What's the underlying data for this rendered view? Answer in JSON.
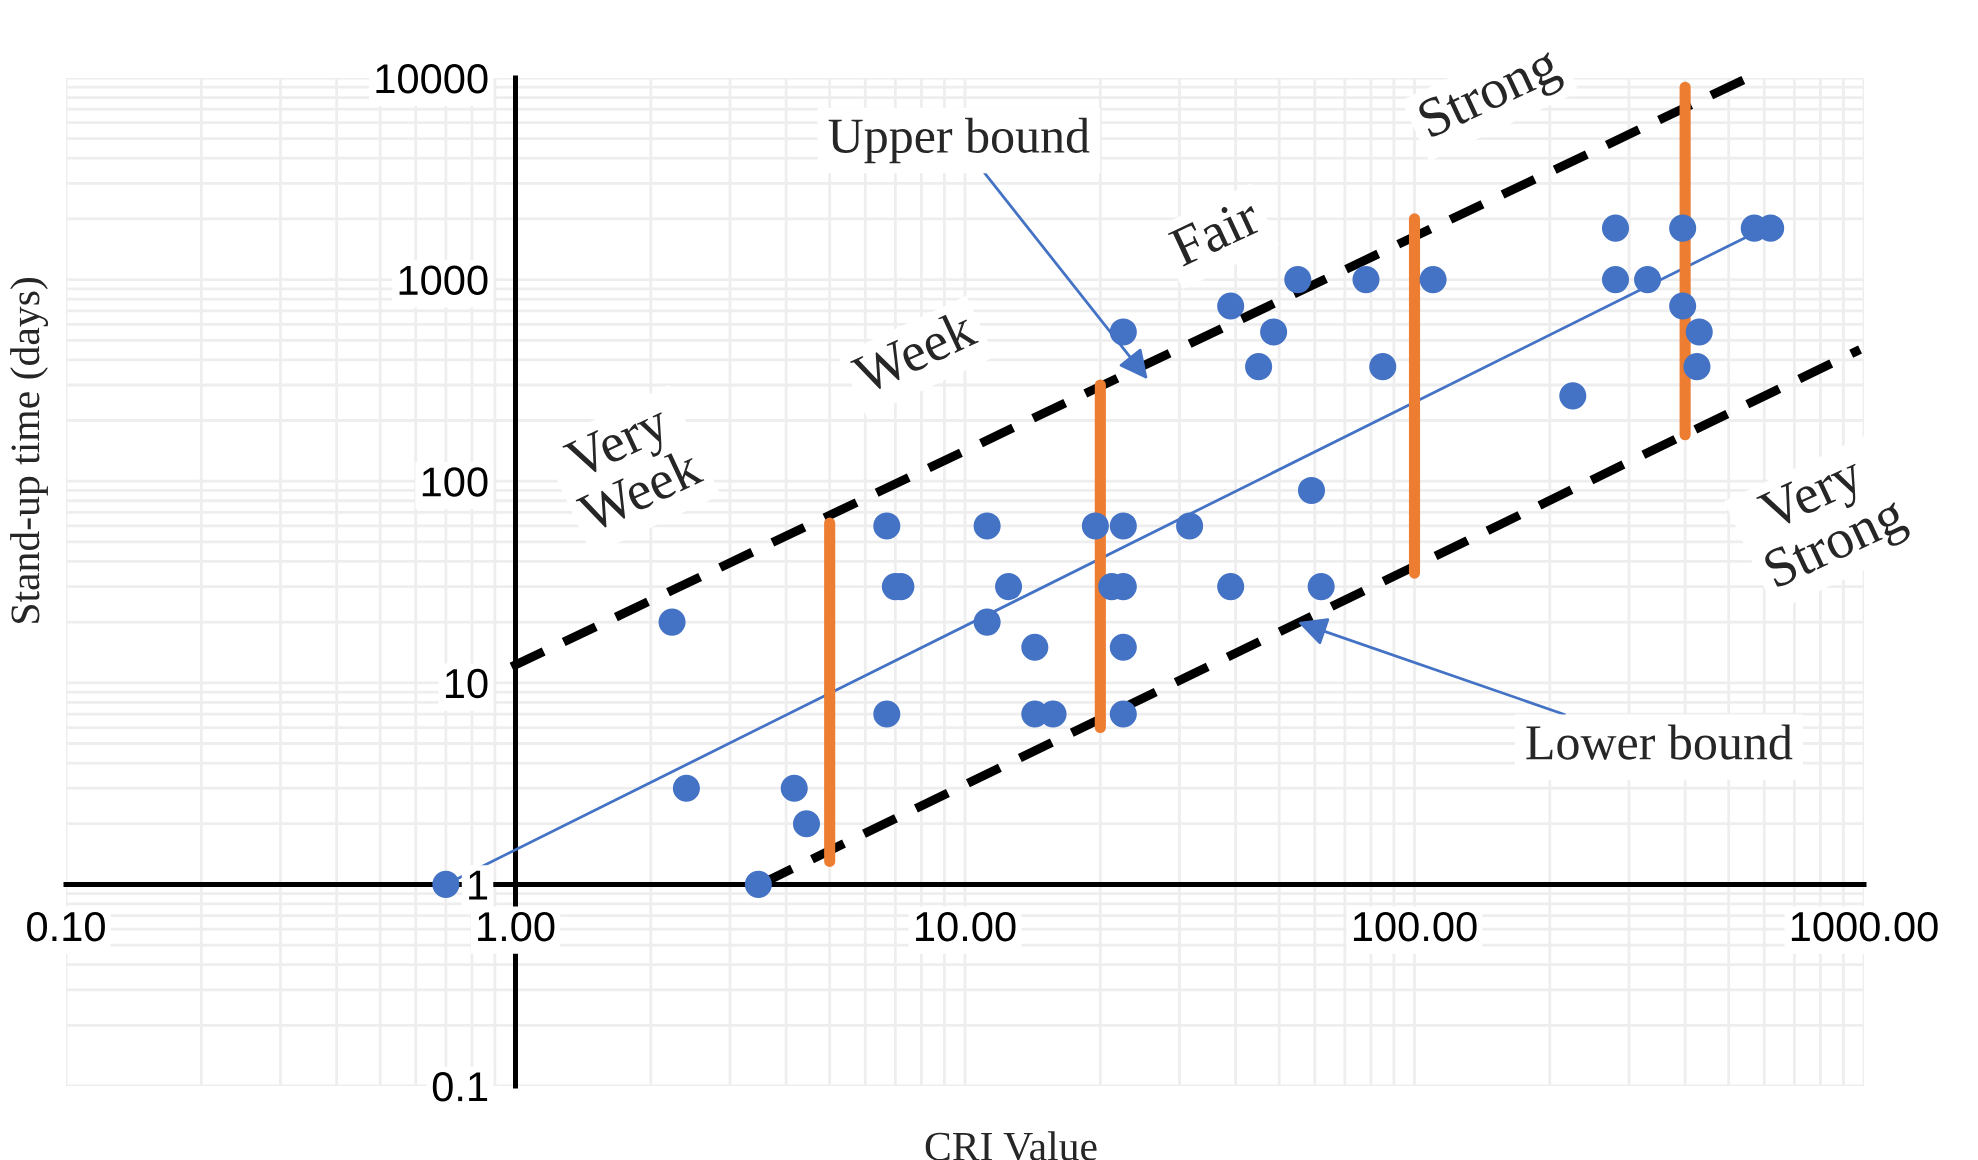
{
  "chart_data": {
    "type": "scatter",
    "xlabel": "CRI Value",
    "ylabel": "Stand-up time (days)",
    "log": "xy",
    "grid": true,
    "xlim": [
      0.1,
      1000
    ],
    "ylim": [
      0.1,
      10000
    ],
    "xticks": [
      {
        "value": 0.1,
        "label": "0.10"
      },
      {
        "value": 1,
        "label": "1.00"
      },
      {
        "value": 10,
        "label": "10.00"
      },
      {
        "value": 100,
        "label": "100.00"
      },
      {
        "value": 1000,
        "label": "1000.00"
      }
    ],
    "yticks": [
      0.1,
      1,
      10,
      100,
      1000,
      10000
    ],
    "series": [
      {
        "marker": "circle",
        "color": "#4472c4",
        "x": [
          0.7,
          2.23,
          2.4,
          3.47,
          4.17,
          4.44,
          6.7,
          6.7,
          7.0,
          7.2,
          11.2,
          11.2,
          12.5,
          14.3,
          14.3,
          15.7,
          19.5,
          21.2,
          22.5,
          22.5,
          22.5,
          22.5,
          22.5,
          31.6,
          39,
          39,
          45,
          48.6,
          55,
          59,
          62,
          78,
          85,
          110,
          225,
          280,
          280,
          330,
          395,
          395,
          430,
          425,
          570,
          620
        ],
        "values": [
          1,
          20,
          3,
          1,
          3,
          2,
          60,
          7,
          30,
          30,
          60,
          20,
          30,
          15,
          7,
          7,
          60,
          30,
          60,
          30,
          15,
          7,
          550,
          60,
          30,
          740,
          370,
          550,
          1000,
          90,
          30,
          1000,
          370,
          1000,
          265,
          1000,
          1800,
          1000,
          1800,
          740,
          550,
          370,
          1800,
          1800
        ]
      },
      {
        "type": "line",
        "color": "#4472c4",
        "x": [
          0.7,
          600
        ],
        "values": [
          1,
          1800
        ]
      },
      {
        "type": "line",
        "color": "#000000",
        "line_style": "dashed",
        "x": [
          0.98,
          550
        ],
        "values": [
          12,
          10000
        ]
      },
      {
        "type": "line",
        "color": "#000000",
        "line_style": "dashed",
        "x": [
          3.5,
          980
        ],
        "values": [
          1,
          450
        ]
      },
      {
        "type": "line",
        "color": "#ed7d31",
        "x": [
          5,
          5
        ],
        "values": [
          1.3,
          62
        ]
      },
      {
        "type": "line",
        "color": "#ed7d31",
        "x": [
          20,
          20
        ],
        "values": [
          6,
          300
        ]
      },
      {
        "type": "line",
        "color": "#ed7d31",
        "x": [
          100,
          100
        ],
        "values": [
          35,
          2000
        ]
      },
      {
        "type": "line",
        "color": "#ed7d31",
        "x": [
          400,
          400
        ],
        "values": [
          170,
          9000
        ]
      }
    ],
    "annotations": [
      "Very\nWeek",
      "Week",
      "Fair",
      "Strong",
      "Very\nStrong",
      {
        "text": "Upper bound",
        "x": 25.5,
        "y": 320
      },
      {
        "text": "Lower bound",
        "x": 55,
        "y": 20
      }
    ]
  }
}
